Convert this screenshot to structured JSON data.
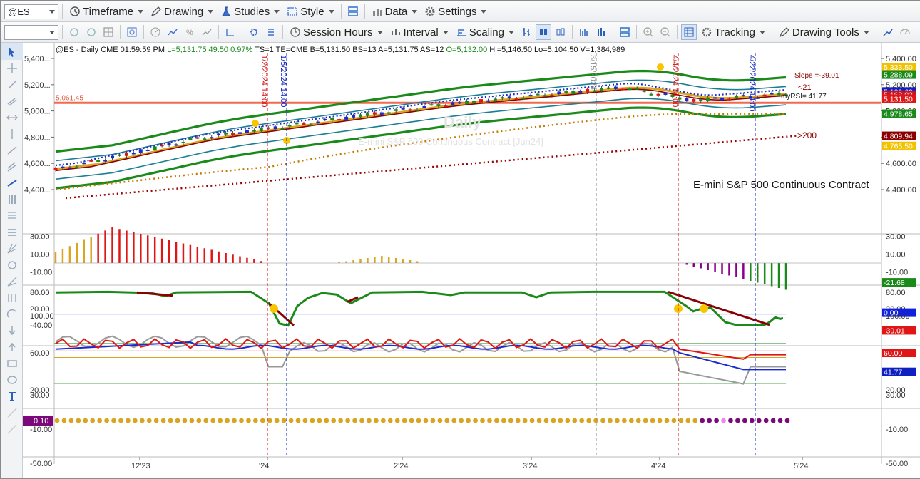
{
  "toolbar1": {
    "symbol": "@ES",
    "items": [
      "Timeframe",
      "Drawing",
      "Studies",
      "Style",
      "Data",
      "Settings"
    ]
  },
  "toolbar2": {
    "field": "",
    "items": [
      "Session Hours",
      "Interval",
      "Scaling",
      "Tracking",
      "Drawing Tools"
    ]
  },
  "header": {
    "symbol": "@ES - Daily",
    "exchange": "CME",
    "time": "01:59:59 PM",
    "last": "L=5,131.75",
    "chg": "49.50",
    "pct": "0.97%",
    "ts": "TS=1",
    "te": "TE=CME",
    "bid": "B=5,131.50",
    "bs": "BS=13",
    "ask": "A=5,131.75",
    "as": "AS=12",
    "open": "O=5,132.00",
    "hi": "Hi=5,146.50",
    "lo": "Lo=5,104.50",
    "vol": "V=1,384,989"
  },
  "annotations": {
    "level_line": "5,061.45",
    "slope": "Slope =-39.01",
    "lt21": "<21",
    "myrsi": "myRSI= 41.77",
    "gt200": ">200",
    "title": "E-mini S&P 500 Continuous Contract",
    "watermark_sub": "E-mini S&P 500 Continuous Contract [Jun24]",
    "watermark_main": "Daily"
  },
  "vlines": [
    {
      "label": "1/2/2024 14:00",
      "color": "#d01010"
    },
    {
      "label": "1/5/2024 14:00",
      "color": "#1020c0"
    },
    {
      "label": "3/15/2024",
      "color": "#888888"
    },
    {
      "label": "4/4/2024 14:00",
      "color": "#d01010"
    },
    {
      "label": "4/22/2024 14:00",
      "color": "#1020c0"
    }
  ],
  "x_axis": [
    "12'23",
    "'24",
    "2'24",
    "3'24",
    "4'24",
    "5'24"
  ],
  "price_axis": [
    "5,400.00",
    "5,200.00",
    "5,000.00",
    "4,800.00",
    "4,600.00",
    "4,400.00"
  ],
  "left_price_axis": [
    "5,400...",
    "5,200...",
    "5,000...",
    "4,800...",
    "4,600...",
    "4,400..."
  ],
  "price_badges": [
    {
      "text": "5,333.50",
      "color": "#f2c200",
      "fg": "#ffffff"
    },
    {
      "text": "5,288.09",
      "color": "#1a8a1a",
      "fg": "#ffffff"
    },
    {
      "text": "5,180.63",
      "color": "#1020c0",
      "fg": "#ffffff"
    },
    {
      "text": "5,168.02",
      "color": "#c0152a",
      "fg": "#ffffff"
    },
    {
      "text": "5,131.50",
      "color": "#e01616",
      "fg": "#ffffff"
    },
    {
      "text": "4,978.65",
      "color": "#1a8a1a",
      "fg": "#ffffff"
    },
    {
      "text": "4,809.94",
      "color": "#8b0000",
      "fg": "#ffffff"
    },
    {
      "text": "4,765.50",
      "color": "#f2c200",
      "fg": "#ffffff"
    }
  ],
  "osc1_axis": [
    "30.00",
    "10.00",
    "-10.00"
  ],
  "osc1_badge": {
    "text": "-21.68",
    "color": "#1a8a1a"
  },
  "osc2_axis": [
    "80.00",
    "20.00",
    "-40.00"
  ],
  "osc2_right_axis": [
    "80.00",
    "20.00"
  ],
  "osc2_badges": [
    {
      "text": "0.00",
      "color": "#1020e0"
    },
    {
      "text": "-39.01",
      "color": "#e01616"
    }
  ],
  "osc3_axis": [
    "100.00",
    "60.00",
    "20.00"
  ],
  "osc3_right_axis": [
    "100.00"
  ],
  "osc3_badges": [
    {
      "text": "60.00",
      "color": "#e01616"
    },
    {
      "text": "41.77",
      "color": "#1020c0"
    }
  ],
  "osc3_right_extra": [
    "20.00"
  ],
  "osc4_axis": [
    "30.00",
    "-10.00",
    "-50.00"
  ],
  "osc4_right_axis": [
    "30.00",
    "-10.00",
    "-50.00"
  ],
  "osc4_left_badge": {
    "text": "0.10",
    "color": "#7a0a7a"
  },
  "colors": {
    "green": "#1a8a1a",
    "red": "#e01616",
    "blue": "#1a2ad0",
    "gold": "#daa520",
    "darkred": "#8b0000",
    "teal": "#1a7f95",
    "purple": "#8b008b"
  }
}
